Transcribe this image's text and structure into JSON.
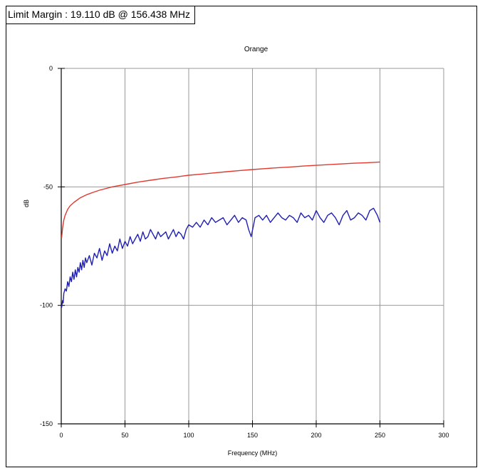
{
  "header": {
    "limit_margin_text": "Limit Margin : 19.110 dB @ 156.438 MHz"
  },
  "chart_data": {
    "type": "line",
    "title": "Orange",
    "xlabel": "Frequency (MHz)",
    "ylabel": "dB",
    "xlim": [
      0,
      300
    ],
    "ylim": [
      -150,
      0
    ],
    "xticks": [
      0,
      50,
      100,
      150,
      200,
      250,
      300
    ],
    "yticks": [
      0,
      -50,
      -100,
      -150
    ],
    "grid": true,
    "colors": {
      "limit": "#e03a2f",
      "measured": "#1f1fb4",
      "grid": "#9a9a9a",
      "axis": "#000000"
    },
    "series": [
      {
        "key": "limit",
        "x": [
          0.3,
          1,
          2,
          3,
          5,
          7,
          10,
          15,
          20,
          25,
          30,
          40,
          50,
          60,
          70,
          80,
          90,
          100,
          110,
          120,
          130,
          140,
          150,
          160,
          170,
          180,
          190,
          200,
          210,
          220,
          230,
          240,
          250
        ],
        "values": [
          -71.5,
          -67.5,
          -64,
          -62,
          -59.5,
          -58,
          -56.5,
          -54.6,
          -53.3,
          -52.3,
          -51.4,
          -50,
          -49,
          -48,
          -47.2,
          -46.4,
          -45.8,
          -45.1,
          -44.6,
          -44.1,
          -43.6,
          -43.1,
          -42.7,
          -42.3,
          -41.9,
          -41.6,
          -41.2,
          -40.9,
          -40.6,
          -40.3,
          -40,
          -39.8,
          -39.5
        ]
      },
      {
        "key": "measured",
        "x": [
          0.3,
          1,
          1.5,
          2,
          3,
          4,
          5,
          6,
          7,
          8,
          9,
          10,
          11,
          12,
          13,
          14,
          15,
          16,
          17,
          18,
          19,
          20,
          22,
          24,
          26,
          28,
          30,
          32,
          34,
          36,
          38,
          40,
          42,
          44,
          46,
          48,
          50,
          52,
          54,
          56,
          58,
          60,
          62,
          64,
          66,
          68,
          70,
          72,
          74,
          76,
          78,
          80,
          82,
          84,
          86,
          88,
          90,
          92,
          94,
          96,
          98,
          100,
          103,
          106,
          109,
          112,
          115,
          118,
          121,
          124,
          127,
          130,
          133,
          136,
          139,
          142,
          145,
          147,
          149,
          152,
          155,
          158,
          161,
          164,
          167,
          170,
          173,
          176,
          179,
          182,
          185,
          188,
          191,
          194,
          197,
          200,
          203,
          206,
          209,
          212,
          215,
          218,
          221,
          224,
          227,
          230,
          233,
          236,
          239,
          242,
          245,
          248,
          250
        ],
        "values": [
          -101,
          -98,
          -99,
          -95,
          -93,
          -94,
          -90,
          -92,
          -88,
          -90,
          -86,
          -89,
          -85,
          -88,
          -84,
          -86,
          -82,
          -85,
          -81,
          -84,
          -80,
          -82,
          -79,
          -83,
          -78,
          -80,
          -76,
          -81,
          -77,
          -79,
          -74,
          -78,
          -75,
          -77,
          -72,
          -76,
          -73,
          -75,
          -71,
          -74,
          -72,
          -70,
          -73,
          -69,
          -72,
          -71,
          -68,
          -70,
          -72,
          -69,
          -71,
          -70,
          -69,
          -72,
          -70,
          -68,
          -71,
          -69,
          -70,
          -72,
          -68,
          -66,
          -67,
          -65,
          -67,
          -64,
          -66,
          -63,
          -65,
          -64,
          -63,
          -66,
          -64,
          -62,
          -65,
          -63,
          -64,
          -68,
          -71,
          -63,
          -62,
          -64,
          -62,
          -65,
          -63,
          -61,
          -63,
          -64,
          -62,
          -63,
          -65,
          -61,
          -63,
          -62,
          -64,
          -60,
          -63,
          -65,
          -62,
          -61,
          -63,
          -66,
          -62,
          -60,
          -64,
          -63,
          -61,
          -62,
          -64,
          -60,
          -59,
          -62,
          -65
        ]
      }
    ]
  }
}
